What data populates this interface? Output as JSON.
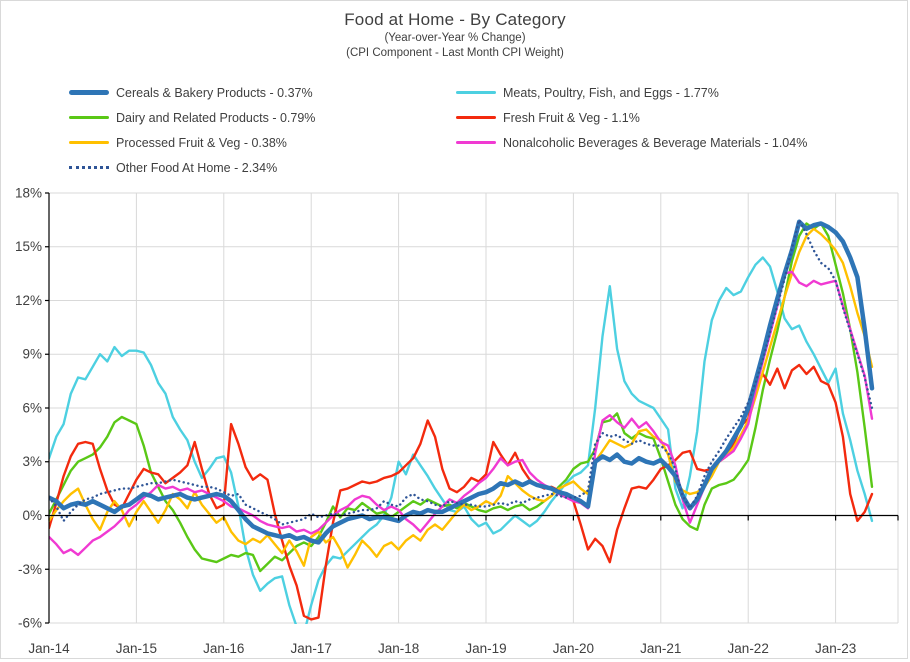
{
  "title": "Food at Home - By Category",
  "subtitle1": "(Year-over-Year % Change)",
  "subtitle2": "(CPI Component - Last Month CPI Weight)",
  "colors": {
    "grid": "#d9d9d9",
    "axis": "#000000",
    "text": "#404040"
  },
  "legend": {
    "left_column": [
      0,
      2,
      4,
      6
    ],
    "right_column": [
      1,
      3,
      5
    ]
  },
  "chart_data": {
    "type": "line",
    "x_unit": "monthly, Jan-2014 through Jun-2023",
    "x_tick_labels": [
      "Jan-14",
      "Jan-15",
      "Jan-16",
      "Jan-17",
      "Jan-18",
      "Jan-19",
      "Jan-20",
      "Jan-21",
      "Jan-22",
      "Jan-23"
    ],
    "y_ticks": [
      18,
      15,
      12,
      9,
      6,
      3,
      0,
      -3,
      -6
    ],
    "y_tick_labels": [
      "18%",
      "15%",
      "12%",
      "9%",
      "6%",
      "3%",
      "0%",
      "-3%",
      "-6%"
    ],
    "ylim": [
      -6,
      18
    ],
    "grid": true,
    "legend_position": "top-left, two columns",
    "series": [
      {
        "name": "Cereals & Bakery Products - 0.37%",
        "slug": "cereals-bakery",
        "color": "#2E75B6",
        "style": "solid-thick",
        "values": [
          1.0,
          0.8,
          0.4,
          0.6,
          0.7,
          0.6,
          0.8,
          0.6,
          0.4,
          0.2,
          0.5,
          0.6,
          0.9,
          1.2,
          1.1,
          0.9,
          1.0,
          1.1,
          1.2,
          1.0,
          0.9,
          1.0,
          1.1,
          1.2,
          1.1,
          0.8,
          0.3,
          -0.2,
          -0.6,
          -0.8,
          -1.0,
          -1.1,
          -1.2,
          -1.1,
          -1.3,
          -1.2,
          -1.4,
          -1.5,
          -1.0,
          -0.6,
          -0.4,
          -0.2,
          -0.1,
          0.0,
          -0.2,
          -0.1,
          -0.1,
          -0.2,
          -0.3,
          0.0,
          0.2,
          0.1,
          0.3,
          0.2,
          0.2,
          0.4,
          0.6,
          0.8,
          1.0,
          1.2,
          1.3,
          1.5,
          1.8,
          1.7,
          1.9,
          1.7,
          1.9,
          1.7,
          1.6,
          1.5,
          1.3,
          1.2,
          1.0,
          0.8,
          0.5,
          3.0,
          3.3,
          3.1,
          3.4,
          3.0,
          2.9,
          3.2,
          3.0,
          2.9,
          3.1,
          2.7,
          2.2,
          1.1,
          0.4,
          0.9,
          1.7,
          2.6,
          3.1,
          3.6,
          4.3,
          5.0,
          6.0,
          7.5,
          9.0,
          10.6,
          12.1,
          13.5,
          14.8,
          16.4,
          16.0,
          16.2,
          16.3,
          16.1,
          15.8,
          15.3,
          14.4,
          13.3,
          10.4,
          7.1
        ]
      },
      {
        "name": "Meats, Poultry, Fish, and Eggs - 1.77%",
        "slug": "meats-poultry-fish-eggs",
        "color": "#4DD0E1",
        "style": "solid",
        "values": [
          3.2,
          4.4,
          5.1,
          6.8,
          7.7,
          7.6,
          8.3,
          9.0,
          8.6,
          9.4,
          8.9,
          9.2,
          9.2,
          9.1,
          8.4,
          7.4,
          6.8,
          5.5,
          4.8,
          4.2,
          3.0,
          2.1,
          2.6,
          3.2,
          3.3,
          2.4,
          0.5,
          -1.8,
          -3.3,
          -4.2,
          -3.8,
          -3.5,
          -3.4,
          -5.0,
          -6.2,
          -6.6,
          -5.0,
          -3.6,
          -2.8,
          -2.3,
          -2.4,
          -2.0,
          -1.6,
          -1.2,
          -0.8,
          -0.5,
          0.0,
          1.0,
          3.0,
          2.3,
          3.4,
          2.8,
          2.2,
          1.5,
          0.9,
          0.3,
          0.2,
          0.5,
          -0.2,
          -0.6,
          -0.4,
          -1.0,
          -0.8,
          -0.4,
          0.0,
          -0.3,
          -0.6,
          -0.3,
          0.2,
          0.8,
          1.3,
          1.8,
          2.2,
          2.4,
          2.8,
          6.0,
          10.0,
          12.8,
          9.3,
          7.5,
          6.8,
          6.4,
          6.2,
          6.0,
          5.4,
          4.8,
          1.5,
          0.4,
          2.2,
          4.7,
          8.6,
          10.9,
          12.0,
          12.7,
          12.3,
          12.5,
          13.3,
          14.0,
          14.4,
          13.9,
          12.5,
          11.0,
          10.4,
          10.6,
          9.7,
          9.0,
          8.2,
          7.4,
          8.2,
          5.7,
          4.2,
          2.5,
          1.2,
          -0.3
        ]
      },
      {
        "name": "Dairy and Related Products - 0.79%",
        "slug": "dairy-related",
        "color": "#5AC816",
        "style": "solid",
        "values": [
          0.1,
          0.9,
          1.7,
          2.5,
          3.0,
          3.2,
          3.4,
          3.8,
          4.4,
          5.2,
          5.5,
          5.3,
          5.1,
          3.9,
          2.4,
          1.6,
          0.8,
          0.3,
          -0.4,
          -1.2,
          -1.9,
          -2.4,
          -2.5,
          -2.6,
          -2.4,
          -2.2,
          -2.3,
          -2.1,
          -2.2,
          -3.1,
          -2.7,
          -2.3,
          -2.5,
          -2.1,
          -1.7,
          -1.5,
          -1.7,
          -1.2,
          -0.4,
          0.5,
          -0.1,
          0.4,
          0.3,
          0.7,
          0.4,
          0.1,
          0.2,
          -0.1,
          0.2,
          0.5,
          0.8,
          0.6,
          0.9,
          0.7,
          0.5,
          0.6,
          0.4,
          0.7,
          0.5,
          0.3,
          0.2,
          0.4,
          0.5,
          0.3,
          0.5,
          0.6,
          0.3,
          0.5,
          0.8,
          1.1,
          1.6,
          2.0,
          2.6,
          2.9,
          3.0,
          3.7,
          5.2,
          5.3,
          5.7,
          4.6,
          4.3,
          4.6,
          4.4,
          4.3,
          3.2,
          1.9,
          0.6,
          -0.2,
          -0.6,
          -0.8,
          0.6,
          1.5,
          1.7,
          1.8,
          2.0,
          2.5,
          3.1,
          4.9,
          7.0,
          8.7,
          10.3,
          12.2,
          14.2,
          15.6,
          16.3,
          16.0,
          16.3,
          15.6,
          14.0,
          12.4,
          10.4,
          8.0,
          4.9,
          1.6
        ]
      },
      {
        "name": "Fresh Fruit & Veg - 1.1%",
        "slug": "fresh-fruit-veg",
        "color": "#F32A0E",
        "style": "solid",
        "values": [
          -0.7,
          0.7,
          2.2,
          3.3,
          4.0,
          4.1,
          4.0,
          2.6,
          1.4,
          0.6,
          0.4,
          1.2,
          2.0,
          2.6,
          2.4,
          2.3,
          1.8,
          2.1,
          2.4,
          2.8,
          4.1,
          2.6,
          1.2,
          0.4,
          0.6,
          5.1,
          4.0,
          2.7,
          2.0,
          2.3,
          2.0,
          0.1,
          -1.4,
          -2.8,
          -3.9,
          -5.6,
          -5.8,
          -5.7,
          -2.8,
          -0.4,
          1.4,
          1.5,
          1.7,
          1.9,
          1.8,
          1.9,
          2.1,
          2.2,
          2.4,
          2.8,
          3.2,
          4.0,
          5.3,
          4.4,
          2.6,
          1.5,
          1.3,
          1.6,
          2.1,
          1.9,
          2.3,
          4.1,
          3.4,
          2.8,
          3.5,
          2.6,
          2.0,
          1.7,
          1.5,
          1.6,
          1.4,
          1.1,
          0.8,
          -0.5,
          -1.9,
          -1.3,
          -1.7,
          -2.6,
          -0.8,
          0.4,
          1.5,
          1.6,
          1.5,
          2.0,
          2.6,
          2.8,
          3.1,
          3.5,
          3.6,
          2.6,
          2.5,
          2.6,
          3.0,
          3.3,
          4.0,
          5.0,
          5.4,
          7.0,
          7.9,
          7.3,
          8.2,
          7.1,
          8.1,
          8.4,
          7.9,
          8.3,
          7.5,
          7.3,
          6.3,
          4.4,
          1.2,
          -0.3,
          0.2,
          1.2
        ]
      },
      {
        "name": "Processed Fruit & Veg - 0.38%",
        "slug": "processed-fruit-veg",
        "color": "#FFC000",
        "style": "solid",
        "values": [
          -0.3,
          0.3,
          0.8,
          1.2,
          1.5,
          0.6,
          -0.2,
          -0.8,
          0.2,
          0.8,
          0.3,
          -0.6,
          0.2,
          0.8,
          0.2,
          -0.4,
          0.3,
          1.2,
          0.9,
          0.4,
          1.3,
          0.6,
          0.1,
          -0.4,
          -0.1,
          -0.9,
          -1.4,
          -1.6,
          -1.3,
          -1.5,
          -1.1,
          -1.6,
          -2.1,
          -1.4,
          -2.0,
          -2.8,
          -1.2,
          -0.9,
          -1.5,
          -1.2,
          -1.9,
          -2.9,
          -2.2,
          -1.4,
          -1.8,
          -2.3,
          -1.7,
          -1.5,
          -1.9,
          -1.4,
          -1.1,
          -1.4,
          -0.8,
          -0.5,
          -0.8,
          -0.3,
          0.2,
          0.6,
          0.3,
          0.5,
          0.8,
          0.6,
          1.1,
          2.2,
          1.8,
          1.4,
          1.1,
          0.9,
          0.8,
          1.1,
          1.5,
          1.7,
          1.9,
          1.5,
          1.2,
          3.0,
          3.6,
          4.2,
          4.0,
          3.8,
          4.0,
          4.7,
          4.8,
          4.4,
          4.2,
          3.4,
          1.9,
          1.4,
          1.2,
          1.3,
          1.6,
          2.2,
          3.0,
          3.3,
          3.8,
          4.5,
          5.3,
          6.6,
          8.0,
          9.4,
          10.8,
          12.2,
          13.5,
          14.7,
          15.6,
          16.0,
          15.7,
          15.3,
          14.8,
          14.1,
          12.8,
          11.3,
          10.0,
          8.3
        ]
      },
      {
        "name": "Nonalcoholic Beverages & Beverage Materials - 1.04%",
        "slug": "nonalcoholic-beverages",
        "color": "#F03AD2",
        "style": "solid",
        "values": [
          -1.2,
          -1.6,
          -2.1,
          -1.9,
          -2.2,
          -1.8,
          -1.4,
          -1.2,
          -0.9,
          -0.6,
          -0.2,
          0.3,
          0.6,
          1.0,
          1.3,
          1.7,
          1.5,
          1.6,
          1.4,
          1.5,
          1.3,
          1.4,
          1.2,
          1.0,
          0.8,
          0.5,
          0.4,
          0.2,
          0.0,
          -0.3,
          -0.5,
          -0.6,
          -0.7,
          -0.6,
          -0.9,
          -0.8,
          -1.0,
          -0.8,
          -0.4,
          0.0,
          0.3,
          0.5,
          0.9,
          1.1,
          1.0,
          0.6,
          0.3,
          0.5,
          0.3,
          -0.2,
          -0.5,
          -0.9,
          -0.4,
          0.1,
          0.5,
          0.9,
          0.7,
          1.1,
          1.4,
          1.8,
          2.1,
          2.6,
          3.2,
          2.8,
          3.0,
          3.1,
          2.4,
          2.0,
          1.7,
          1.5,
          1.2,
          1.0,
          0.8,
          0.7,
          0.4,
          3.5,
          5.3,
          5.6,
          5.2,
          4.9,
          5.4,
          4.9,
          5.2,
          4.7,
          4.1,
          3.9,
          2.8,
          0.9,
          -0.4,
          0.6,
          1.6,
          2.6,
          3.0,
          3.3,
          3.6,
          4.3,
          5.1,
          7.0,
          8.6,
          10.1,
          11.7,
          13.5,
          13.6,
          13.0,
          12.8,
          13.1,
          12.9,
          13.0,
          13.1,
          11.7,
          10.4,
          9.1,
          7.8,
          5.4
        ]
      },
      {
        "name": "Other Food At Home - 2.34%",
        "slug": "other-food-at-home",
        "color": "#2F5597",
        "style": "dotted",
        "values": [
          1.0,
          0.5,
          -0.3,
          0.2,
          0.6,
          0.9,
          1.0,
          1.2,
          1.3,
          1.4,
          1.5,
          1.5,
          1.6,
          1.7,
          1.8,
          1.8,
          1.9,
          2.0,
          1.9,
          1.8,
          1.7,
          1.6,
          1.6,
          1.5,
          1.3,
          1.1,
          1.2,
          0.6,
          0.4,
          0.2,
          0.0,
          -0.2,
          -0.5,
          -0.4,
          -0.3,
          -0.2,
          0.1,
          -0.1,
          0.0,
          0.1,
          0.0,
          0.1,
          0.2,
          0.3,
          0.3,
          0.4,
          0.8,
          0.6,
          0.5,
          1.0,
          1.2,
          0.9,
          0.8,
          0.6,
          0.5,
          0.8,
          0.7,
          0.6,
          0.6,
          0.5,
          0.5,
          0.6,
          0.7,
          0.6,
          0.8,
          0.7,
          0.9,
          1.0,
          1.1,
          1.2,
          1.1,
          1.0,
          1.0,
          1.1,
          1.4,
          4.0,
          4.6,
          4.4,
          4.5,
          4.2,
          4.0,
          4.2,
          4.0,
          3.9,
          3.9,
          3.5,
          2.6,
          1.1,
          0.4,
          1.1,
          2.2,
          3.0,
          3.6,
          4.3,
          4.9,
          5.5,
          6.3,
          7.4,
          8.7,
          10.2,
          11.7,
          13.2,
          14.9,
          16.5,
          15.7,
          14.8,
          14.1,
          13.8,
          13.1,
          11.6,
          10.3,
          9.0,
          7.7,
          6.0
        ]
      }
    ]
  }
}
